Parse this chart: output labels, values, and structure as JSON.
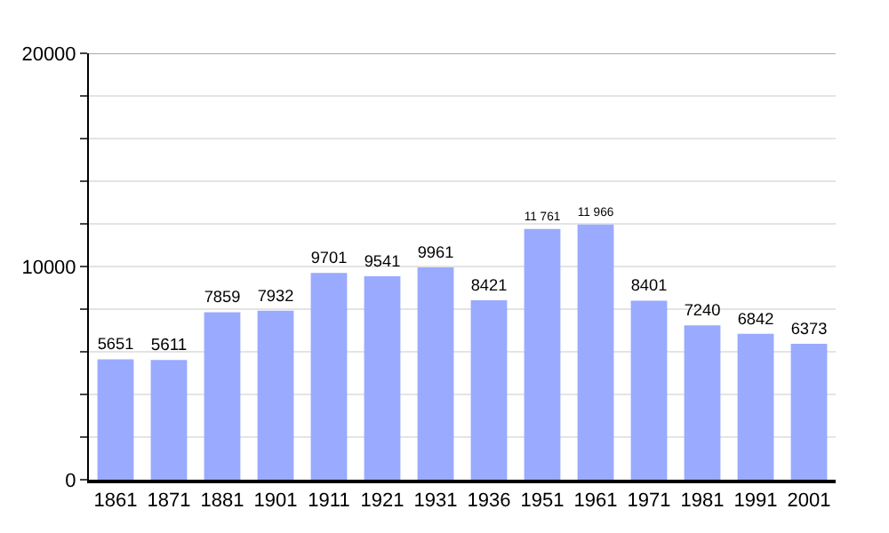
{
  "chart_data": {
    "type": "bar",
    "categories": [
      "1861",
      "1871",
      "1881",
      "1901",
      "1911",
      "1921",
      "1931",
      "1936",
      "1951",
      "1961",
      "1971",
      "1981",
      "1991",
      "2001"
    ],
    "values": [
      5651,
      5611,
      7859,
      7932,
      9701,
      9541,
      9961,
      8421,
      11761,
      11966,
      8401,
      7240,
      6842,
      6373
    ],
    "value_labels": [
      "5651",
      "5611",
      "7859",
      "7932",
      "9701",
      "9541",
      "9961",
      "8421",
      "11 761",
      "11 966",
      "8401",
      "7240",
      "6842",
      "6373"
    ],
    "color": "#99aaff",
    "ylim": [
      0,
      20000
    ],
    "yticks": [
      0,
      {
        "value": 2000,
        "label": null
      },
      {
        "value": 4000,
        "label": null
      },
      {
        "value": 6000,
        "label": null
      },
      {
        "value": 8000,
        "label": null
      },
      10000,
      {
        "value": 12000,
        "label": null
      },
      {
        "value": 14000,
        "label": null
      },
      {
        "value": 16000,
        "label": null
      },
      {
        "value": 18000,
        "label": null
      },
      20000
    ],
    "grid": true
  }
}
